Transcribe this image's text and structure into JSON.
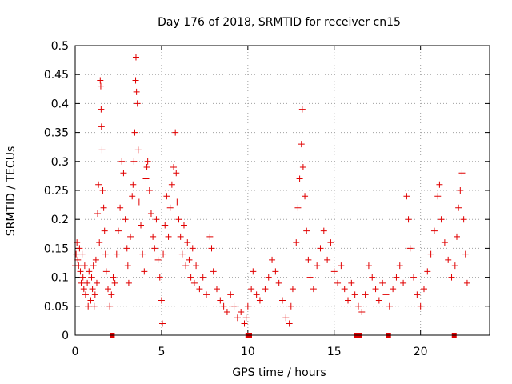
{
  "chart_data": {
    "type": "scatter",
    "title": "Day 176 of 2018, SRMTID for receiver cn15",
    "xlabel": "GPS time / hours",
    "ylabel": "SRMTID / TECUs",
    "xlim": [
      0,
      24
    ],
    "ylim": [
      0,
      0.5
    ],
    "x_ticks": [
      0,
      5,
      10,
      15,
      20
    ],
    "x_tick_labels": [
      "0",
      "5",
      "10",
      "15",
      "20"
    ],
    "y_ticks": [
      0,
      0.05,
      0.1,
      0.15,
      0.2,
      0.25,
      0.3,
      0.35,
      0.4,
      0.45,
      0.5
    ],
    "y_tick_labels": [
      "0",
      "0.05",
      "0.1",
      "0.15",
      "0.2",
      "0.25",
      "0.3",
      "0.35",
      "0.4",
      "0.45",
      "0.5"
    ],
    "grid": true,
    "marker": "+",
    "color": "#e00000",
    "series": [
      {
        "name": "SRMTID",
        "points": [
          [
            0.0,
            0.12
          ],
          [
            0.05,
            0.14
          ],
          [
            0.1,
            0.16
          ],
          [
            0.15,
            0.13
          ],
          [
            0.2,
            0.12
          ],
          [
            0.25,
            0.15
          ],
          [
            0.3,
            0.11
          ],
          [
            0.35,
            0.09
          ],
          [
            0.4,
            0.14
          ],
          [
            0.45,
            0.1
          ],
          [
            0.5,
            0.08
          ],
          [
            0.55,
            0.12
          ],
          [
            0.6,
            0.07
          ],
          [
            0.7,
            0.09
          ],
          [
            0.75,
            0.05
          ],
          [
            0.8,
            0.11
          ],
          [
            0.9,
            0.06
          ],
          [
            0.95,
            0.1
          ],
          [
            1.0,
            0.08
          ],
          [
            1.05,
            0.12
          ],
          [
            1.1,
            0.05
          ],
          [
            1.15,
            0.07
          ],
          [
            1.2,
            0.13
          ],
          [
            1.25,
            0.09
          ],
          [
            1.3,
            0.21
          ],
          [
            1.35,
            0.26
          ],
          [
            1.4,
            0.16
          ],
          [
            1.45,
            0.44
          ],
          [
            1.48,
            0.43
          ],
          [
            1.5,
            0.39
          ],
          [
            1.52,
            0.36
          ],
          [
            1.55,
            0.32
          ],
          [
            1.6,
            0.25
          ],
          [
            1.65,
            0.22
          ],
          [
            1.7,
            0.18
          ],
          [
            1.75,
            0.14
          ],
          [
            1.8,
            0.11
          ],
          [
            1.9,
            0.08
          ],
          [
            2.0,
            0.05
          ],
          [
            2.1,
            0.07
          ],
          [
            2.2,
            0.1
          ],
          [
            2.3,
            0.09
          ],
          [
            2.4,
            0.14
          ],
          [
            2.5,
            0.18
          ],
          [
            2.6,
            0.22
          ],
          [
            2.7,
            0.3
          ],
          [
            2.8,
            0.28
          ],
          [
            2.9,
            0.2
          ],
          [
            3.0,
            0.15
          ],
          [
            3.05,
            0.12
          ],
          [
            3.1,
            0.09
          ],
          [
            3.2,
            0.17
          ],
          [
            3.3,
            0.24
          ],
          [
            3.35,
            0.26
          ],
          [
            3.4,
            0.3
          ],
          [
            3.45,
            0.35
          ],
          [
            3.5,
            0.44
          ],
          [
            3.52,
            0.48
          ],
          [
            3.55,
            0.42
          ],
          [
            3.6,
            0.4
          ],
          [
            3.65,
            0.32
          ],
          [
            3.7,
            0.23
          ],
          [
            3.8,
            0.19
          ],
          [
            3.9,
            0.14
          ],
          [
            4.0,
            0.11
          ],
          [
            4.1,
            0.27
          ],
          [
            4.15,
            0.29
          ],
          [
            4.2,
            0.3
          ],
          [
            4.3,
            0.25
          ],
          [
            4.4,
            0.21
          ],
          [
            4.5,
            0.17
          ],
          [
            4.6,
            0.15
          ],
          [
            4.7,
            0.2
          ],
          [
            4.8,
            0.13
          ],
          [
            4.9,
            0.1
          ],
          [
            5.0,
            0.06
          ],
          [
            5.05,
            0.02
          ],
          [
            5.1,
            0.14
          ],
          [
            5.2,
            0.19
          ],
          [
            5.3,
            0.24
          ],
          [
            5.4,
            0.17
          ],
          [
            5.5,
            0.22
          ],
          [
            5.6,
            0.26
          ],
          [
            5.7,
            0.29
          ],
          [
            5.8,
            0.35
          ],
          [
            5.85,
            0.28
          ],
          [
            5.9,
            0.23
          ],
          [
            6.0,
            0.2
          ],
          [
            6.1,
            0.17
          ],
          [
            6.2,
            0.14
          ],
          [
            6.3,
            0.19
          ],
          [
            6.4,
            0.12
          ],
          [
            6.5,
            0.16
          ],
          [
            6.6,
            0.13
          ],
          [
            6.7,
            0.1
          ],
          [
            6.8,
            0.15
          ],
          [
            6.9,
            0.09
          ],
          [
            7.0,
            0.12
          ],
          [
            7.2,
            0.08
          ],
          [
            7.4,
            0.1
          ],
          [
            7.6,
            0.07
          ],
          [
            7.8,
            0.17
          ],
          [
            7.9,
            0.15
          ],
          [
            8.0,
            0.11
          ],
          [
            8.2,
            0.08
          ],
          [
            8.4,
            0.06
          ],
          [
            8.6,
            0.05
          ],
          [
            8.8,
            0.04
          ],
          [
            9.0,
            0.07
          ],
          [
            9.2,
            0.05
          ],
          [
            9.4,
            0.03
          ],
          [
            9.6,
            0.04
          ],
          [
            9.8,
            0.02
          ],
          [
            9.9,
            0.03
          ],
          [
            10.0,
            0.05
          ],
          [
            10.2,
            0.08
          ],
          [
            10.3,
            0.11
          ],
          [
            10.5,
            0.07
          ],
          [
            10.7,
            0.06
          ],
          [
            11.0,
            0.08
          ],
          [
            11.2,
            0.1
          ],
          [
            11.4,
            0.13
          ],
          [
            11.6,
            0.11
          ],
          [
            11.8,
            0.09
          ],
          [
            12.0,
            0.06
          ],
          [
            12.2,
            0.03
          ],
          [
            12.4,
            0.02
          ],
          [
            12.5,
            0.05
          ],
          [
            12.6,
            0.08
          ],
          [
            12.8,
            0.16
          ],
          [
            12.9,
            0.22
          ],
          [
            13.0,
            0.27
          ],
          [
            13.1,
            0.33
          ],
          [
            13.15,
            0.39
          ],
          [
            13.2,
            0.29
          ],
          [
            13.3,
            0.24
          ],
          [
            13.4,
            0.18
          ],
          [
            13.5,
            0.13
          ],
          [
            13.6,
            0.1
          ],
          [
            13.8,
            0.08
          ],
          [
            14.0,
            0.12
          ],
          [
            14.2,
            0.15
          ],
          [
            14.4,
            0.18
          ],
          [
            14.6,
            0.13
          ],
          [
            14.8,
            0.16
          ],
          [
            15.0,
            0.11
          ],
          [
            15.2,
            0.09
          ],
          [
            15.4,
            0.12
          ],
          [
            15.6,
            0.08
          ],
          [
            15.8,
            0.06
          ],
          [
            16.0,
            0.09
          ],
          [
            16.2,
            0.07
          ],
          [
            16.4,
            0.05
          ],
          [
            16.6,
            0.04
          ],
          [
            16.8,
            0.07
          ],
          [
            17.0,
            0.12
          ],
          [
            17.2,
            0.1
          ],
          [
            17.4,
            0.08
          ],
          [
            17.6,
            0.06
          ],
          [
            17.8,
            0.09
          ],
          [
            18.0,
            0.07
          ],
          [
            18.2,
            0.05
          ],
          [
            18.4,
            0.08
          ],
          [
            18.6,
            0.1
          ],
          [
            18.8,
            0.12
          ],
          [
            19.0,
            0.09
          ],
          [
            19.2,
            0.24
          ],
          [
            19.3,
            0.2
          ],
          [
            19.4,
            0.15
          ],
          [
            19.6,
            0.1
          ],
          [
            19.8,
            0.07
          ],
          [
            20.0,
            0.05
          ],
          [
            20.2,
            0.08
          ],
          [
            20.4,
            0.11
          ],
          [
            20.6,
            0.14
          ],
          [
            20.8,
            0.18
          ],
          [
            21.0,
            0.24
          ],
          [
            21.1,
            0.26
          ],
          [
            21.2,
            0.2
          ],
          [
            21.4,
            0.16
          ],
          [
            21.6,
            0.13
          ],
          [
            21.8,
            0.1
          ],
          [
            22.0,
            0.12
          ],
          [
            22.1,
            0.17
          ],
          [
            22.2,
            0.22
          ],
          [
            22.3,
            0.25
          ],
          [
            22.4,
            0.28
          ],
          [
            22.5,
            0.2
          ],
          [
            22.6,
            0.14
          ],
          [
            22.7,
            0.09
          ]
        ]
      }
    ],
    "missing_data_markers_x": [
      2.15,
      10.0,
      10.1,
      16.3,
      16.45,
      18.15,
      21.95
    ]
  }
}
